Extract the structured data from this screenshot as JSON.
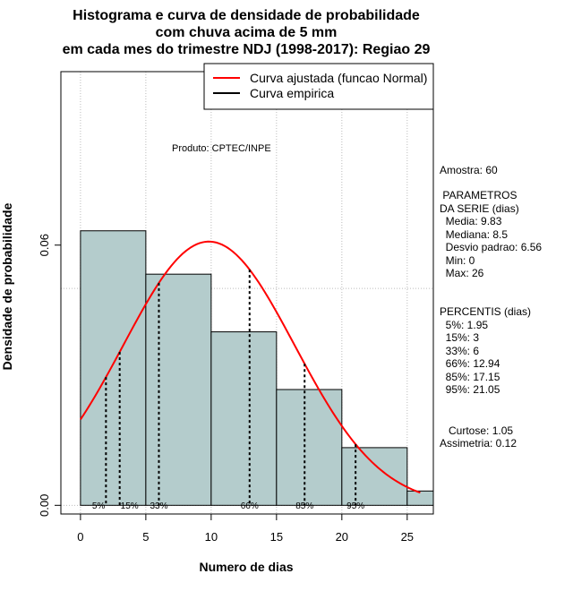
{
  "chart_data": {
    "type": "histogram",
    "title_lines": [
      "Histograma e curva de densidade de probabilidade",
      "com chuva acima de 5 mm",
      "em cada mes do trimestre NDJ (1998-2017): Regiao 29"
    ],
    "xlabel": "Numero de dias",
    "ylabel": "Densidade de probabilidade",
    "xlim": [
      -1.5,
      27
    ],
    "ylim": [
      -0.002,
      0.1
    ],
    "xticks": [
      0,
      5,
      10,
      15,
      20,
      25
    ],
    "xtick_labels": [
      "0",
      "5",
      "10",
      "15",
      "20",
      "25"
    ],
    "yticks": [
      0.0,
      0.06
    ],
    "ytick_labels": [
      "0.00",
      "0.06"
    ],
    "grid_x": [
      0,
      5,
      10,
      15,
      20,
      25
    ],
    "grid_y": [
      0.0,
      0.05,
      0.1
    ],
    "bins": [
      {
        "from": 0,
        "to": 5,
        "density": 0.0633
      },
      {
        "from": 5,
        "to": 10,
        "density": 0.0533
      },
      {
        "from": 10,
        "to": 15,
        "density": 0.04
      },
      {
        "from": 15,
        "to": 20,
        "density": 0.0267
      },
      {
        "from": 20,
        "to": 25,
        "density": 0.0133
      },
      {
        "from": 25,
        "to": 27,
        "density": 0.0033
      }
    ],
    "normal_fit": {
      "mean": 9.83,
      "sd": 6.56,
      "from": 0,
      "to": 26
    },
    "percentiles": [
      {
        "label": "5%",
        "value": 1.95
      },
      {
        "label": "15%",
        "value": 3
      },
      {
        "label": "33%",
        "value": 6
      },
      {
        "label": "66%",
        "value": 12.94
      },
      {
        "label": "85%",
        "value": 17.15
      },
      {
        "label": "95%",
        "value": 21.05
      }
    ],
    "legend": {
      "position": "top-right",
      "entries": [
        {
          "label": "Curva ajustada (funcao Normal)",
          "color": "#ff0000"
        },
        {
          "label": "Curva empirica",
          "color": "#000000"
        }
      ]
    },
    "annotation": "Produto: CPTEC/INPE",
    "colors": {
      "bar_fill": "#b4cccc",
      "fit_line": "#ff0000",
      "grid": "#bbbbbb"
    }
  },
  "stats_panel": {
    "sample": "Amostra: 60",
    "params_title": [
      " PARAMETROS",
      "DA SERIE (dias)"
    ],
    "params": [
      "  Media: 9.83",
      "  Mediana: 8.5",
      "  Desvio padrao: 6.56",
      "  Min: 0",
      "  Max: 26"
    ],
    "percentis_title": "PERCENTIS (dias)",
    "percentis": [
      "  5%: 1.95",
      "  15%: 3",
      "  33%: 6",
      "  66%: 12.94",
      "  85%: 17.15",
      "  95%: 21.05"
    ],
    "curtose": "   Curtose: 1.05",
    "assimetria": "Assimetria: 0.12"
  }
}
